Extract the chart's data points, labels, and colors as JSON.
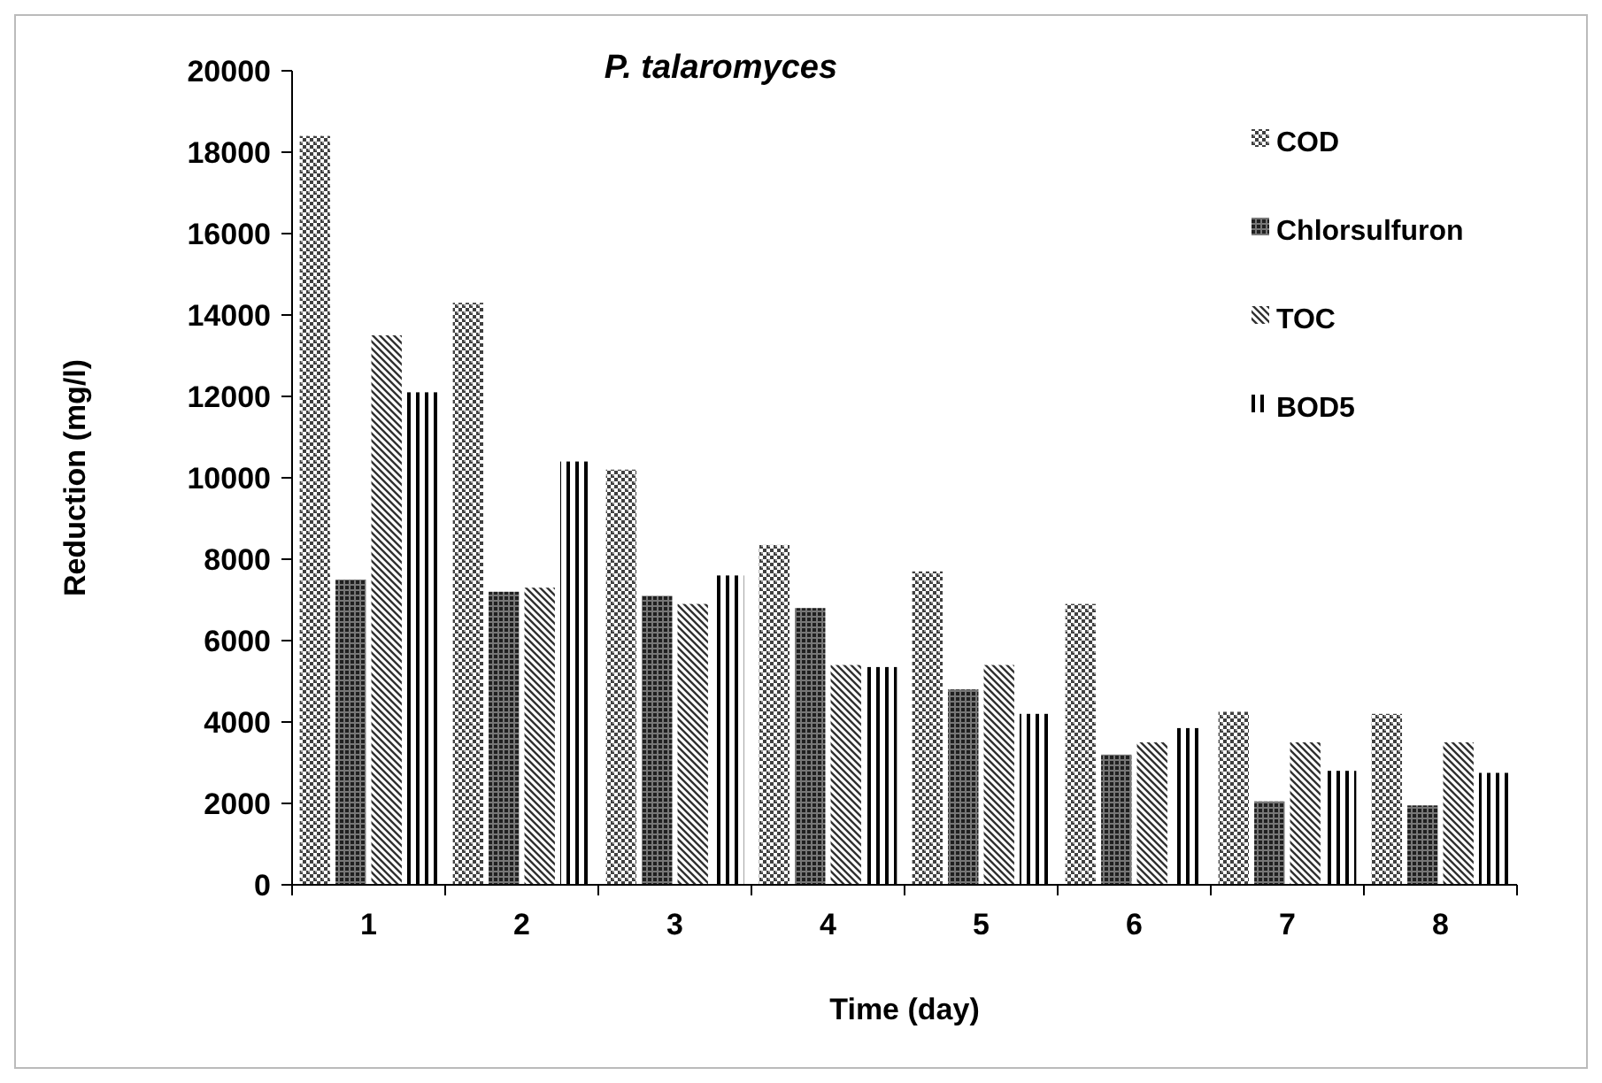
{
  "chart_data": {
    "type": "bar",
    "title": "P. talaromyces",
    "xlabel": "Time (day)",
    "ylabel": "Reduction (mg/l)",
    "categories": [
      "1",
      "2",
      "3",
      "4",
      "5",
      "6",
      "7",
      "8"
    ],
    "series": [
      {
        "name": "COD",
        "color": "#404040",
        "values": [
          18400,
          14300,
          10200,
          8350,
          7700,
          6900,
          4250,
          4200
        ]
      },
      {
        "name": "Chlorsulfuron",
        "color": "#202020",
        "values": [
          7500,
          7200,
          7100,
          6800,
          4800,
          3200,
          2050,
          1950
        ]
      },
      {
        "name": "TOC",
        "color": "#303030",
        "values": [
          13500,
          7300,
          6900,
          5400,
          5400,
          3500,
          3500,
          3500
        ]
      },
      {
        "name": "BOD5",
        "color": "#000000",
        "values": [
          12100,
          10400,
          7600,
          5350,
          4200,
          3850,
          2800,
          2750
        ]
      }
    ],
    "ylim": [
      0,
      20000
    ],
    "yticks": [
      0,
      2000,
      4000,
      6000,
      8000,
      10000,
      12000,
      14000,
      16000,
      18000,
      20000
    ],
    "grid": false,
    "legend": "top right"
  }
}
